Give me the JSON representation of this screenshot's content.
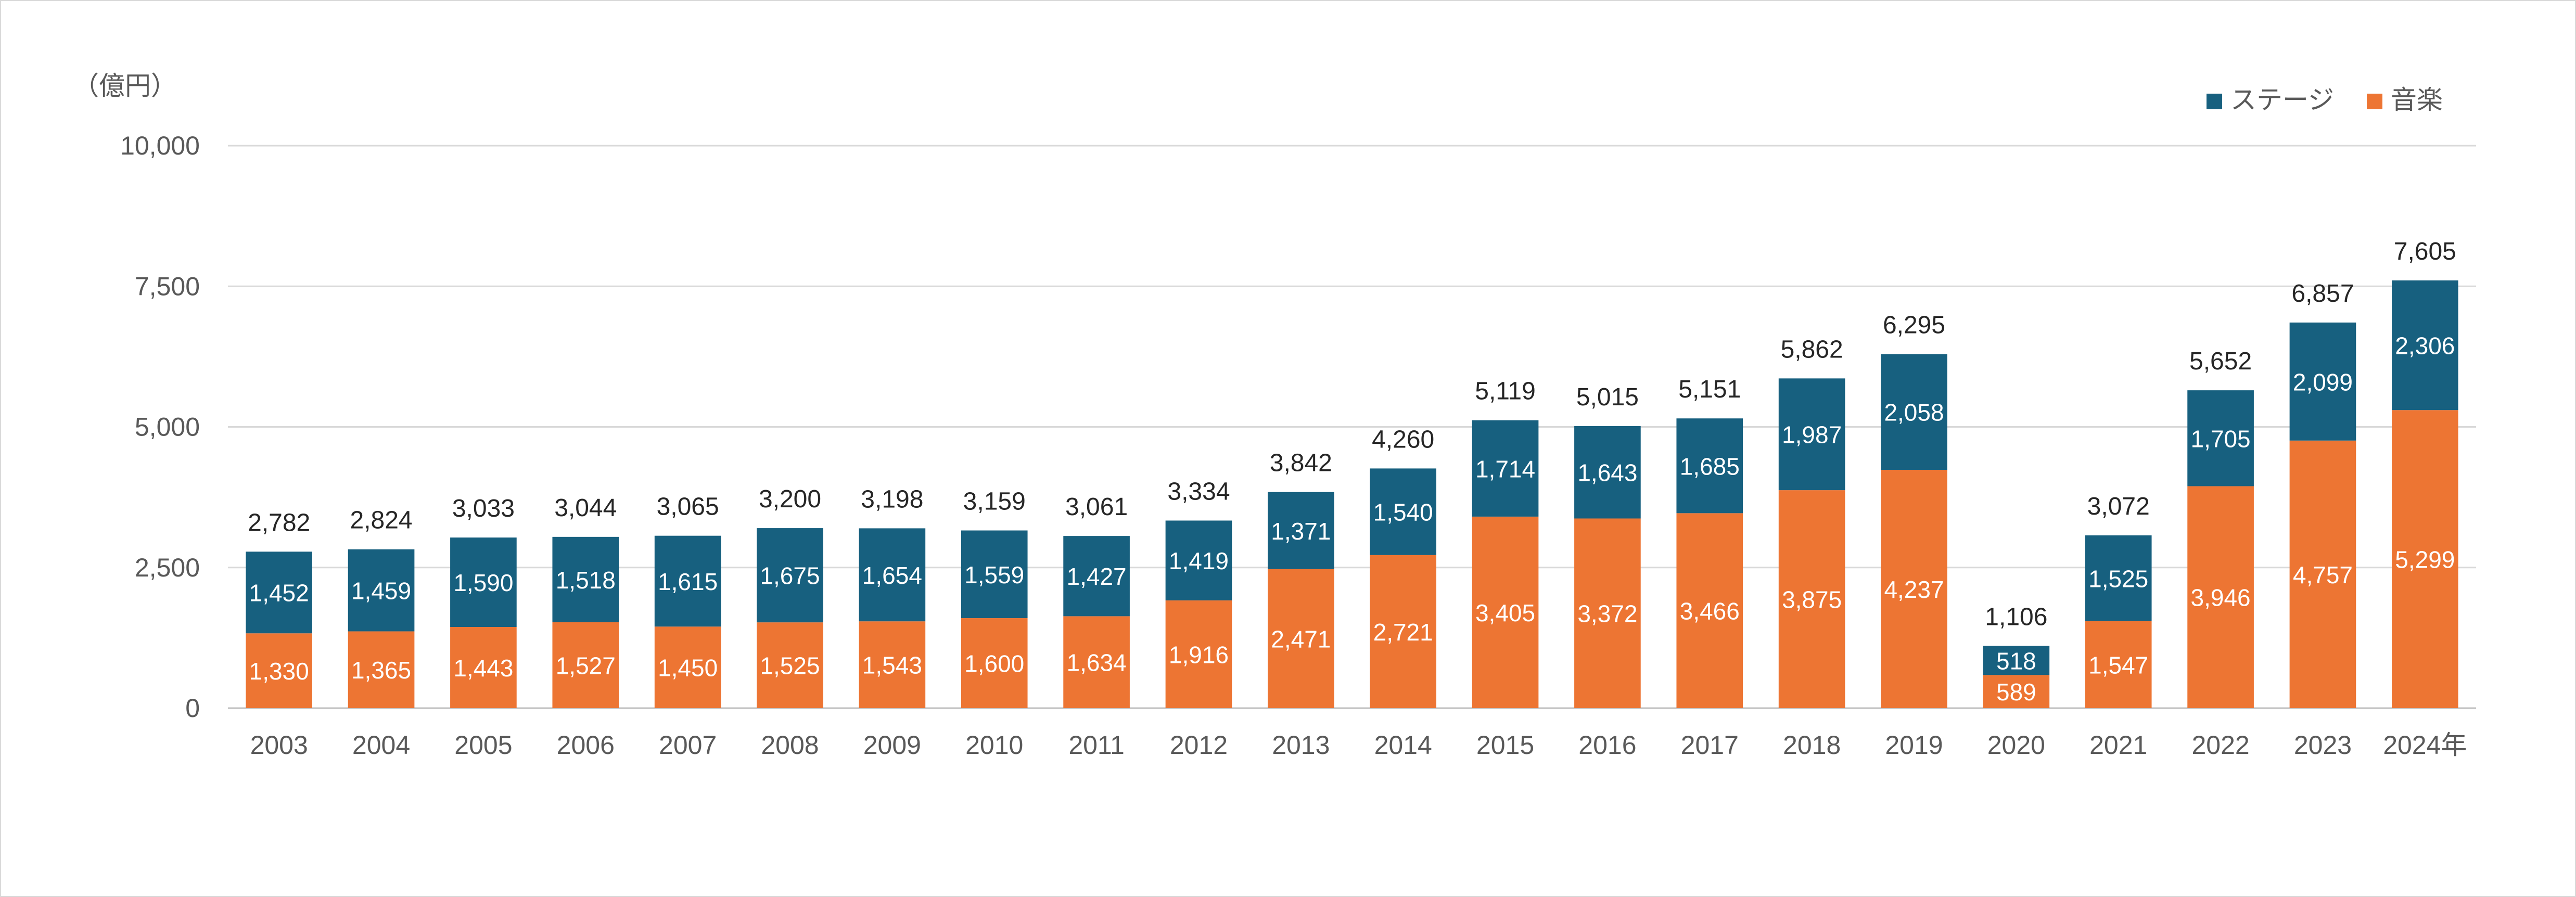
{
  "chart_data": {
    "type": "bar",
    "stacked": true,
    "unit_label": "（億円）",
    "categories": [
      "2003",
      "2004",
      "2005",
      "2006",
      "2007",
      "2008",
      "2009",
      "2010",
      "2011",
      "2012",
      "2013",
      "2014",
      "2015",
      "2016",
      "2017",
      "2018",
      "2019",
      "2020",
      "2021",
      "2022",
      "2023",
      "2024年"
    ],
    "series": [
      {
        "name": "音楽",
        "color": "#ED7533",
        "values": [
          1330,
          1365,
          1443,
          1527,
          1450,
          1525,
          1543,
          1600,
          1634,
          1916,
          2471,
          2721,
          3405,
          3372,
          3466,
          3875,
          4237,
          589,
          1547,
          3946,
          4757,
          5299
        ]
      },
      {
        "name": "ステージ",
        "color": "#17607F",
        "values": [
          1452,
          1459,
          1590,
          1518,
          1615,
          1675,
          1654,
          1559,
          1427,
          1419,
          1371,
          1540,
          1714,
          1643,
          1685,
          1987,
          2058,
          518,
          1525,
          1705,
          2099,
          2306
        ]
      }
    ],
    "totals": [
      2782,
      2824,
      3033,
      3044,
      3065,
      3200,
      3198,
      3159,
      3061,
      3334,
      3842,
      4260,
      5119,
      5015,
      5151,
      5862,
      6295,
      1106,
      3072,
      5652,
      6857,
      7605
    ],
    "ylim": [
      0,
      10000
    ],
    "yticks": [
      0,
      2500,
      5000,
      7500,
      10000
    ],
    "grid": true,
    "legend_position": "top-right"
  }
}
